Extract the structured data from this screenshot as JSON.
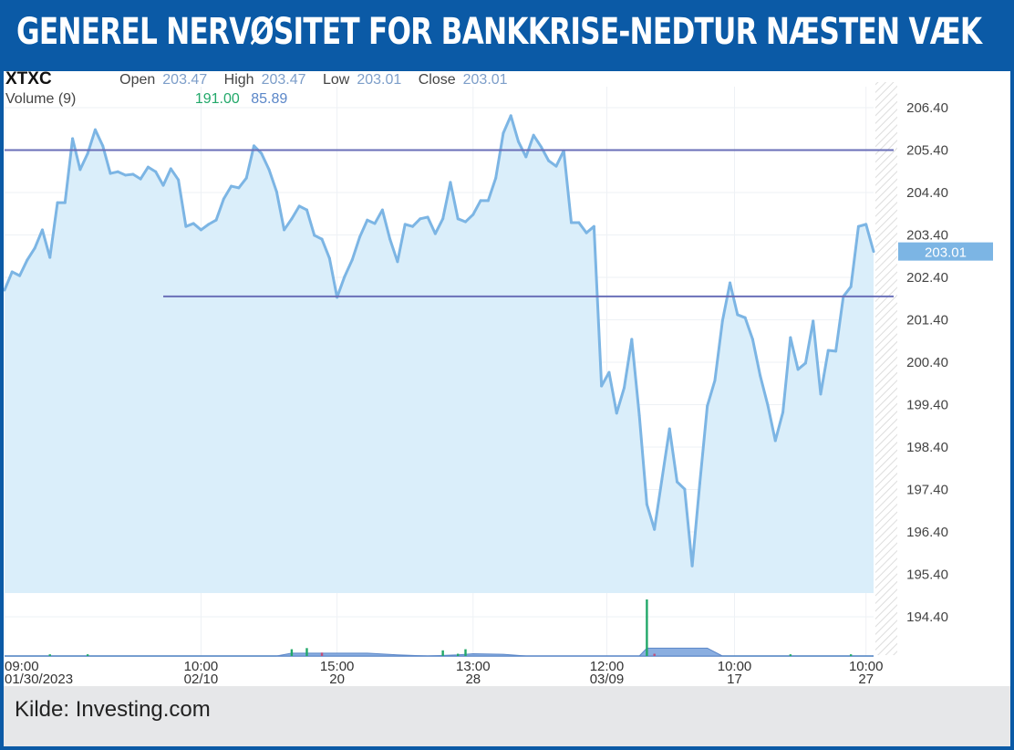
{
  "header": {
    "title": "GENEREL NERVØSITET FOR BANKKRISE-NEDTUR NÆSTEN VÆK"
  },
  "footer": {
    "source": "Kilde: Investing.com"
  },
  "quote": {
    "symbol": "XTXC",
    "open_label": "Open",
    "open": "203.47",
    "high_label": "High",
    "high": "203.47",
    "low_label": "Low",
    "low": "203.01",
    "close_label": "Close",
    "close": "203.01",
    "volume_label": "Volume (9)",
    "volume_a": "191.00",
    "volume_b": "85.89"
  },
  "colors": {
    "brand": "#0b5aa6",
    "line": "#7cb5e4",
    "area": "#daeefa",
    "hline": "#6a6fb8",
    "vol_up": "#22a86a",
    "vol_down": "#c0507a",
    "vol_area": "#8aaee0"
  },
  "chart_data": {
    "type": "area",
    "title": "",
    "xlabel": "",
    "ylabel": "",
    "ylim": [
      194.9,
      206.9
    ],
    "y_ticks": [
      "206.40",
      "205.40",
      "204.40",
      "203.40",
      "202.40",
      "201.40",
      "200.40",
      "199.40",
      "198.40",
      "197.40",
      "196.40",
      "195.40",
      "194.40"
    ],
    "x_ticks": [
      {
        "index": 0,
        "time": "09:00",
        "date": "01/30/2023"
      },
      {
        "index": 26,
        "time": "10:00",
        "date": "02/10"
      },
      {
        "index": 44,
        "time": "15:00",
        "date": "20"
      },
      {
        "index": 62,
        "time": "13:00",
        "date": "28"
      },
      {
        "index": 79.7,
        "time": "12:00",
        "date": "03/09"
      },
      {
        "index": 96.6,
        "time": "10:00",
        "date": "17"
      },
      {
        "index": 114,
        "time": "10:00",
        "date": "27"
      }
    ],
    "last_price": "203.01",
    "prices": [
      202.1,
      202.53,
      202.44,
      202.81,
      203.09,
      203.52,
      202.87,
      204.16,
      204.16,
      205.67,
      204.94,
      205.32,
      205.88,
      205.5,
      204.85,
      204.89,
      204.81,
      204.83,
      204.72,
      205.0,
      204.89,
      204.57,
      204.96,
      204.7,
      203.6,
      203.67,
      203.52,
      203.65,
      203.75,
      204.25,
      204.55,
      204.51,
      204.74,
      205.5,
      205.32,
      204.94,
      204.42,
      203.52,
      203.78,
      204.08,
      203.99,
      203.39,
      203.3,
      202.85,
      201.93,
      202.42,
      202.81,
      203.35,
      203.75,
      203.67,
      203.99,
      203.3,
      202.77,
      203.65,
      203.6,
      203.78,
      203.82,
      203.43,
      203.78,
      204.64,
      203.78,
      203.71,
      203.88,
      204.21,
      204.21,
      204.74,
      205.8,
      206.21,
      205.6,
      205.24,
      205.75,
      205.48,
      205.15,
      205.02,
      205.39,
      203.69,
      203.69,
      203.45,
      203.6,
      199.84,
      200.16,
      199.2,
      199.8,
      200.94,
      199.15,
      197.05,
      196.46,
      197.65,
      198.83,
      197.58,
      197.41,
      195.6,
      197.54,
      199.37,
      199.97,
      201.37,
      202.27,
      201.52,
      201.45,
      200.94,
      200.08,
      199.39,
      198.55,
      199.22,
      200.98,
      200.23,
      200.38,
      201.37,
      199.65,
      200.68,
      200.66,
      201.95,
      202.18,
      203.6,
      203.65,
      203.01
    ],
    "horizontal_lines": [
      {
        "level": 205.4,
        "start_index": 0
      },
      {
        "level": 201.95,
        "start_index": 21
      }
    ],
    "volume": [
      {
        "index": 6,
        "value": 0.03,
        "dir": "up"
      },
      {
        "index": 11,
        "value": 0.03,
        "dir": "up"
      },
      {
        "index": 38,
        "value": 0.12,
        "dir": "up"
      },
      {
        "index": 40,
        "value": 0.14,
        "dir": "up"
      },
      {
        "index": 42,
        "value": 0.06,
        "dir": "down"
      },
      {
        "index": 58,
        "value": 0.1,
        "dir": "up"
      },
      {
        "index": 60,
        "value": 0.04,
        "dir": "up"
      },
      {
        "index": 61,
        "value": 0.12,
        "dir": "up"
      },
      {
        "index": 85,
        "value": 1.0,
        "dir": "up"
      },
      {
        "index": 86,
        "value": 0.04,
        "dir": "down"
      },
      {
        "index": 104,
        "value": 0.03,
        "dir": "up"
      },
      {
        "index": 112,
        "value": 0.03,
        "dir": "up"
      }
    ],
    "volume_area": [
      [
        36,
        0
      ],
      [
        38,
        0.05
      ],
      [
        48,
        0.05
      ],
      [
        52,
        0.02
      ],
      [
        56,
        0
      ],
      [
        60,
        0.02
      ],
      [
        62,
        0.04
      ],
      [
        66,
        0.03
      ],
      [
        69,
        0
      ],
      [
        84,
        0
      ],
      [
        85,
        0.14
      ],
      [
        93,
        0.14
      ],
      [
        95,
        0
      ]
    ]
  }
}
